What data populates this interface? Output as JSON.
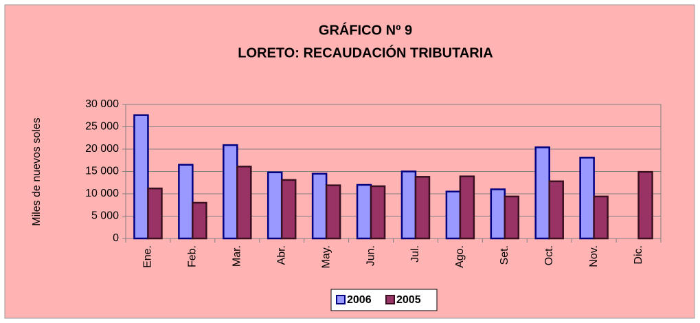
{
  "chart_data": {
    "type": "bar",
    "title": "GRÁFICO Nº 9",
    "subtitle": "LORETO: RECAUDACIÓN TRIBUTARIA",
    "y_label": "Miles de nuevos soles",
    "categories": [
      "Ene.",
      "Feb.",
      "Mar.",
      "Abr.",
      "May.",
      "Jun.",
      "Jul.",
      "Ago.",
      "Set.",
      "Oct.",
      "Nov.",
      "Dic."
    ],
    "series": [
      {
        "name": "2006",
        "color": "#9999FF",
        "values": [
          27600,
          16500,
          20900,
          14800,
          14500,
          12000,
          15000,
          10500,
          11000,
          20400,
          18100,
          null
        ]
      },
      {
        "name": "2005",
        "color": "#993366",
        "values": [
          11200,
          8000,
          16100,
          13100,
          11900,
          11700,
          13800,
          13900,
          9400,
          12800,
          9400,
          14900
        ]
      }
    ],
    "ylim": [
      0,
      30000
    ],
    "yticks": [
      0,
      {
        "value": 5000,
        "label": "5 000"
      },
      {
        "value": 10000,
        "label": "10 000"
      },
      {
        "value": 15000,
        "label": "15 000"
      },
      {
        "value": 20000,
        "label": "20 000"
      },
      {
        "value": 25000,
        "label": "25 000"
      },
      {
        "value": 30000,
        "label": "30 000"
      }
    ],
    "grid": true,
    "legend": "bottom"
  }
}
